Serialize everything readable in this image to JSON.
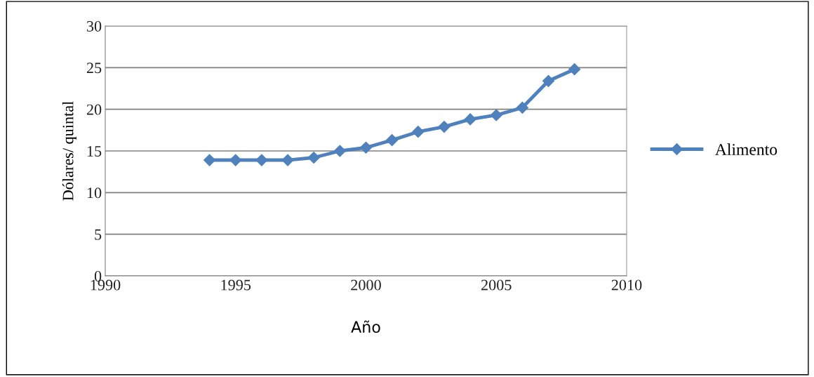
{
  "chart_data": {
    "type": "line",
    "xlabel": "Año",
    "ylabel": "Dólares/ quintal",
    "x": [
      1994,
      1995,
      1996,
      1997,
      1998,
      1999,
      2000,
      2001,
      2002,
      2003,
      2004,
      2005,
      2006,
      2007,
      2008
    ],
    "series": [
      {
        "name": "Alimento",
        "color": "#4f81bd",
        "values": [
          13.9,
          13.9,
          13.9,
          13.9,
          14.2,
          15.0,
          15.4,
          16.3,
          17.3,
          17.9,
          18.8,
          19.3,
          20.2,
          23.4,
          24.8
        ]
      }
    ],
    "xlim": [
      1990,
      2010
    ],
    "xticks": [
      1990,
      1995,
      2000,
      2005,
      2010
    ],
    "ylim": [
      0,
      30
    ],
    "yticks": [
      0,
      5,
      10,
      15,
      20,
      25,
      30
    ],
    "grid": "y",
    "legend": "right",
    "marker": "diamond",
    "line_style": "solid"
  }
}
